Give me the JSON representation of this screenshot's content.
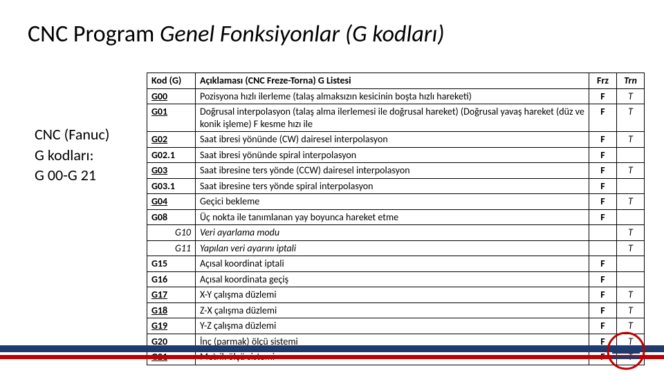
{
  "title": {
    "prefix": "CNC Program ",
    "italic": "Genel Fonksiyonlar (G kodları)"
  },
  "side_note": {
    "line1": "CNC (Fanuc)",
    "line2": "G kodları:",
    "line3": "G 00-G 21"
  },
  "table": {
    "headers": {
      "code": "Kod (G)",
      "desc": "Açıklaması (CNC Freze-Torna) G Listesi",
      "frz": "Frz",
      "trn": "Trn"
    },
    "rows": [
      {
        "code": "G00",
        "code_style": "ul",
        "desc": "Pozisyona hızlı ilerleme (talaş almaksızın kesicinin boşta hızlı hareketi)",
        "frz": "F",
        "trn": "T"
      },
      {
        "code": "G01",
        "code_style": "ul",
        "desc": "Doğrusal interpolasyon (talaş alma ilerlemesi ile doğrusal hareket) (Doğrusal yavaş hareket (düz ve konik işleme) F kesme hızı ile",
        "frz": "F",
        "trn": "T"
      },
      {
        "code": "G02",
        "code_style": "ul",
        "desc": "Saat ibresi yönünde (CW) dairesel interpolasyon",
        "frz": "F",
        "trn": "T"
      },
      {
        "code": "G02.1",
        "code_style": "",
        "desc": "Saat ibresi yönünde spiral interpolasyon",
        "frz": "F",
        "trn": ""
      },
      {
        "code": "G03",
        "code_style": "ul",
        "desc": "Saat ibresine ters yönde (CCW) dairesel interpolasyon",
        "frz": "F",
        "trn": "T"
      },
      {
        "code": "G03.1",
        "code_style": "",
        "desc": "Saat ibresine ters yönde spiral interpolasyon",
        "frz": "F",
        "trn": ""
      },
      {
        "code": "G04",
        "code_style": "ul",
        "desc": "Geçici bekleme",
        "frz": "F",
        "trn": "T"
      },
      {
        "code": "G08",
        "code_style": "",
        "desc": "Üç nokta ile tanımlanan yay boyunca hareket etme",
        "frz": "F",
        "trn": ""
      },
      {
        "code": "G10",
        "code_style": "right it",
        "desc": "Veri ayarlama modu",
        "desc_style": "it",
        "frz": "",
        "trn": "T"
      },
      {
        "code": "G11",
        "code_style": "right it",
        "desc": "Yapılan veri ayarını iptali",
        "desc_style": "it",
        "frz": "",
        "trn": "T"
      },
      {
        "code": "G15",
        "code_style": "",
        "desc": "Açısal koordinat iptali",
        "frz": "F",
        "trn": ""
      },
      {
        "code": "G16",
        "code_style": "",
        "desc": "Açısal koordinata geçiş",
        "frz": "F",
        "trn": ""
      },
      {
        "code": "G17",
        "code_style": "ul",
        "desc": "X-Y çalışma düzlemi",
        "frz": "F",
        "trn": "T"
      },
      {
        "code": "G18",
        "code_style": "ul",
        "desc": "Z-X çalışma düzlemi",
        "frz": "F",
        "trn": "T"
      },
      {
        "code": "G19",
        "code_style": "ul",
        "desc": "Y-Z çalışma düzlemi",
        "frz": "F",
        "trn": "T"
      },
      {
        "code": "G20",
        "code_style": "ul",
        "desc": "İnç (parmak) ölçü sistemi",
        "frz": "F",
        "trn": "T"
      },
      {
        "code": "G21",
        "code_style": "ul",
        "desc": "Metrik ölçü sistemi",
        "frz": "F",
        "trn": "T"
      }
    ]
  },
  "colors": {
    "bar_top": "#1f3a6d",
    "bar_bottom": "#c00000"
  }
}
